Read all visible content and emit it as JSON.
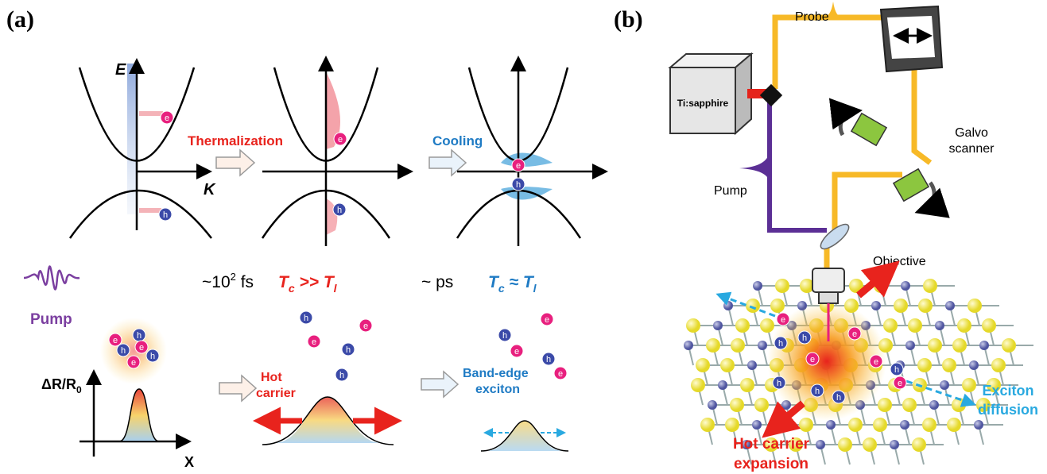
{
  "panel_a": {
    "label": "(a)",
    "energy_axis": "E",
    "momentum_axis": "K",
    "step1": "Thermalization",
    "step2": "Cooling",
    "time1": {
      "base": "~10",
      "exponent": "2",
      "unit": " fs"
    },
    "temp1": {
      "t1": "T",
      "s1": "c",
      "rel": " >> ",
      "t2": "T",
      "s2": "l"
    },
    "time2": "~ ps",
    "temp2": {
      "t1": "T",
      "s1": "c",
      "rel": " ≈ ",
      "t2": "T",
      "s2": "l"
    },
    "pump": "Pump",
    "signal_axis": {
      "base": "ΔR/R",
      "sub": "0"
    },
    "position_axis": "X",
    "hot_carrier": [
      "Hot",
      "carrier"
    ],
    "band_edge": [
      "Band-edge",
      "exciton"
    ]
  },
  "particles": {
    "electron": "e",
    "hole": "h"
  },
  "panel_b": {
    "label": "(b)",
    "probe": "Probe",
    "laser": "Ti:sapphire",
    "galvo": [
      "Galvo",
      "scanner"
    ],
    "pump": "Pump",
    "objective": "Objective",
    "exciton_diffusion": [
      "Exciton",
      "diffusion"
    ],
    "hot_carrier_expansion": [
      "Hot carrier",
      "expansion"
    ]
  }
}
